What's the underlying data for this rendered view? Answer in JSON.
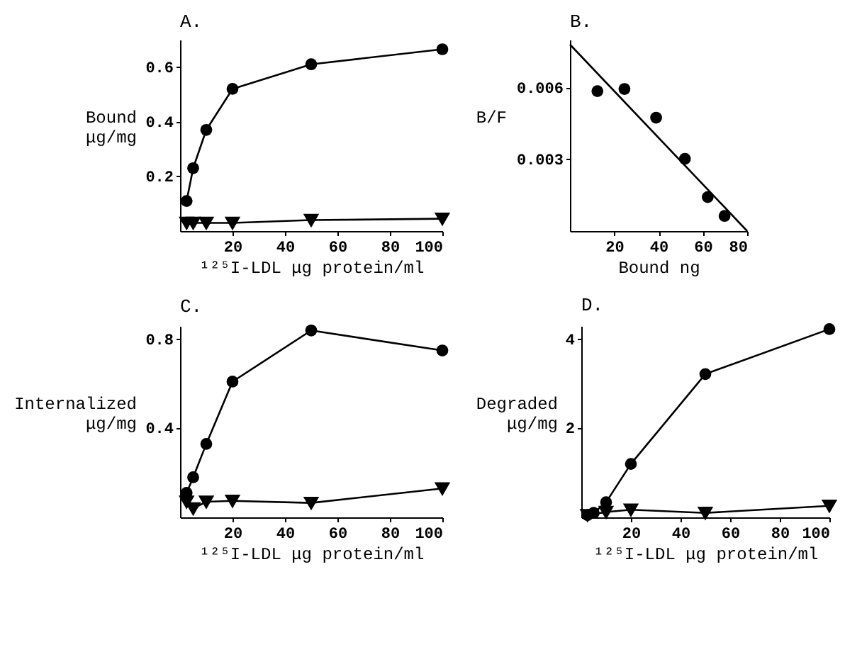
{
  "chart_data": [
    {
      "type": "line",
      "title": "A.",
      "ylabel": "Bound\nμg/mg",
      "xlabel": "¹²⁵I-LDL μg protein/ml",
      "x": [
        2.5,
        5,
        10,
        20,
        50,
        100
      ],
      "xlim": [
        0,
        100
      ],
      "xticks": [
        20,
        40,
        60,
        80,
        100
      ],
      "ylim": [
        0,
        0.7
      ],
      "yticks": [
        0.2,
        0.4,
        0.6
      ],
      "grid": false,
      "series": [
        {
          "color": "#000000",
          "marker": "circle",
          "values": [
            0.11,
            0.23,
            0.37,
            0.52,
            0.61,
            0.665
          ]
        },
        {
          "color": "#000000",
          "marker": "triangle",
          "values": [
            0.03,
            0.03,
            0.03,
            0.03,
            0.04,
            0.045
          ]
        }
      ]
    },
    {
      "type": "scatter",
      "title": "B.",
      "ylabel": "B/F",
      "xlabel": "Bound ng",
      "xlim": [
        0,
        80
      ],
      "xticks": [
        20,
        40,
        60,
        80
      ],
      "ylim": [
        0,
        0.008
      ],
      "yticks": [
        0.003,
        0.006
      ],
      "grid": false,
      "series": [
        {
          "color": "#000000",
          "marker": "circle",
          "x": [
            12.4,
            24.6,
            38.9,
            51.9,
            62.2,
            69.8
          ],
          "values": [
            0.00585,
            0.00594,
            0.00474,
            0.00302,
            0.00142,
            0.00063
          ]
        },
        {
          "type": "line",
          "color": "#000000",
          "marker": "none",
          "x": [
            0,
            80
          ],
          "values": [
            0.0078,
            0
          ]
        }
      ]
    },
    {
      "type": "line",
      "title": "C.",
      "ylabel": "Internalized\nμg/mg",
      "xlabel": "¹²⁵I-LDL μg protein/ml",
      "x": [
        2.5,
        5,
        10,
        20,
        50,
        100
      ],
      "xlim": [
        0,
        100
      ],
      "xticks": [
        20,
        40,
        60,
        80,
        100
      ],
      "ylim": [
        0,
        0.86
      ],
      "yticks": [
        0.4,
        0.8
      ],
      "grid": false,
      "series": [
        {
          "color": "#000000",
          "marker": "circle",
          "values": [
            0.11,
            0.18,
            0.33,
            0.61,
            0.84,
            0.75
          ]
        },
        {
          "color": "#000000",
          "marker": "triangle",
          "values": [
            0.07,
            0.04,
            0.07,
            0.074,
            0.065,
            0.13
          ]
        }
      ]
    },
    {
      "type": "line",
      "title": "D.",
      "ylabel": "Degraded\nμg/mg",
      "xlabel": "¹²⁵I-LDL μg protein/ml",
      "x": [
        2.5,
        5,
        10,
        20,
        50,
        100
      ],
      "xlim": [
        0,
        100
      ],
      "xticks": [
        20,
        40,
        60,
        80,
        100
      ],
      "ylim": [
        0,
        4.3
      ],
      "yticks": [
        2,
        4
      ],
      "grid": false,
      "series": [
        {
          "color": "#000000",
          "marker": "circle",
          "values": [
            0.05,
            0.1,
            0.34,
            1.2,
            3.22,
            4.23
          ]
        },
        {
          "color": "#000000",
          "marker": "triangle",
          "values": [
            0.05,
            null,
            0.12,
            0.17,
            0.1,
            0.26
          ]
        }
      ]
    }
  ]
}
